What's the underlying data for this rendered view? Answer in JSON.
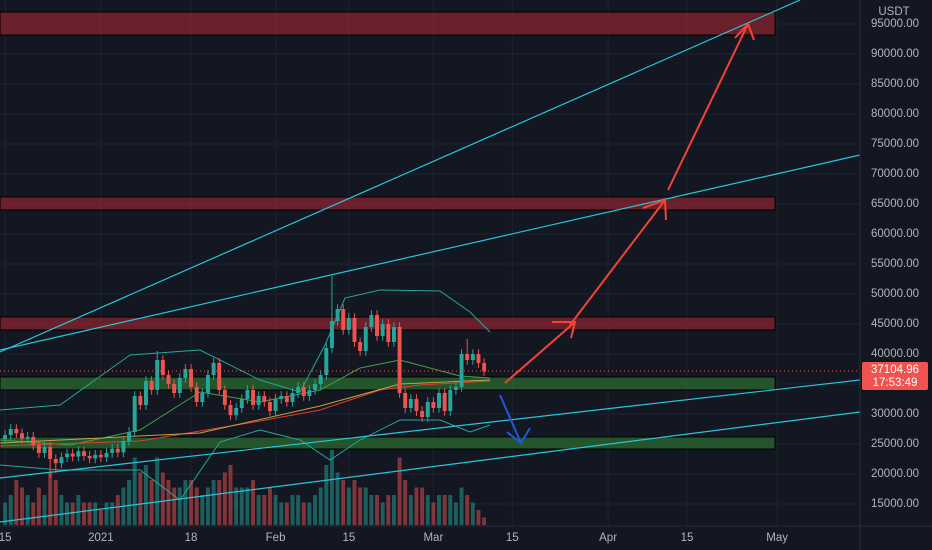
{
  "chart_data": {
    "type": "candlestick",
    "currency": "USDT",
    "countdown": "17:53:49",
    "grid": true,
    "up_color": "#26a69a",
    "down_color": "#ef5350",
    "xlim": [
      -0.9,
      151.7
    ],
    "xticks": [
      {
        "value": 0,
        "label": "15"
      },
      {
        "value": 17,
        "label": "2021"
      },
      {
        "value": 33,
        "label": "18"
      },
      {
        "value": 48,
        "label": "Feb"
      },
      {
        "value": 61,
        "label": "15"
      },
      {
        "value": 76,
        "label": "Mar"
      },
      {
        "value": 90,
        "label": "15"
      },
      {
        "value": 107,
        "label": "Apr"
      },
      {
        "value": 121,
        "label": "15"
      },
      {
        "value": 137,
        "label": "May"
      }
    ],
    "ylim": [
      11500,
      99000
    ],
    "yticks": [
      {
        "value": 15000,
        "label": "15000.00"
      },
      {
        "value": 20000,
        "label": "20000.00"
      },
      {
        "value": 25000,
        "label": "25000.00"
      },
      {
        "value": 30000,
        "label": "30000.00"
      },
      {
        "value": 35000,
        "label": "35000.00"
      },
      {
        "value": 40000,
        "label": "40000.00"
      },
      {
        "value": 45000,
        "label": "45000.00"
      },
      {
        "value": 50000,
        "label": "50000.00"
      },
      {
        "value": 55000,
        "label": "55000.00"
      },
      {
        "value": 60000,
        "label": "60000.00"
      },
      {
        "value": 65000,
        "label": "65000.00"
      },
      {
        "value": 70000,
        "label": "70000.00"
      },
      {
        "value": 75000,
        "label": "75000.00"
      },
      {
        "value": 80000,
        "label": "80000.00"
      },
      {
        "value": 85000,
        "label": "85000.00"
      },
      {
        "value": 90000,
        "label": "90000.00"
      },
      {
        "value": 95000,
        "label": "95000.00"
      }
    ],
    "open": [
      25800,
      26500,
      27500,
      26800,
      25900,
      26200,
      24800,
      23500,
      24500,
      22500,
      21800,
      22800,
      23400,
      22900,
      23800,
      23000,
      22600,
      23200,
      22800,
      23500,
      24200,
      23600,
      25500,
      27000,
      33000,
      31500,
      35500,
      34000,
      39000,
      36500,
      35000,
      33500,
      36000,
      37500,
      34500,
      32000,
      33500,
      36500,
      38500,
      34000,
      31500,
      29800,
      31000,
      32500,
      34000,
      31500,
      33000,
      32000,
      30500,
      32500,
      33000,
      32000,
      33500,
      34500,
      33000,
      34000,
      35000,
      36500,
      41000,
      45500,
      47500,
      44000,
      46000,
      42000,
      40500,
      44500,
      46500,
      43000,
      45000,
      42000,
      44500,
      33500,
      31000,
      32500,
      30500,
      29500,
      32000,
      31000,
      33500,
      30500,
      34000,
      34500,
      40000,
      39000,
      40000,
      38500
    ],
    "high": [
      27300,
      28300,
      28300,
      27600,
      27000,
      27000,
      25600,
      25300,
      25300,
      23300,
      23600,
      24200,
      24200,
      24600,
      24600,
      23800,
      24000,
      24000,
      24300,
      25000,
      25000,
      26300,
      27800,
      33800,
      33800,
      36300,
      36300,
      40500,
      39800,
      37300,
      35800,
      36800,
      38300,
      38300,
      35300,
      34300,
      37300,
      39300,
      39300,
      34800,
      32300,
      31800,
      33300,
      34800,
      34800,
      33800,
      33800,
      32800,
      33300,
      33800,
      33800,
      34300,
      35300,
      35300,
      34800,
      35800,
      37300,
      41800,
      53000,
      48300,
      48300,
      46800,
      46800,
      42800,
      45300,
      47300,
      47300,
      45800,
      45800,
      45300,
      45300,
      34300,
      33300,
      33300,
      31300,
      32800,
      32800,
      34300,
      34300,
      34800,
      35300,
      40800,
      42500,
      40800,
      40800,
      39300
    ],
    "low": [
      25000,
      25700,
      26000,
      25100,
      25100,
      24000,
      22700,
      22700,
      19500,
      20200,
      21000,
      22000,
      22100,
      22100,
      22200,
      21800,
      21800,
      22000,
      22000,
      22700,
      22800,
      22800,
      24700,
      26200,
      30700,
      30700,
      33200,
      33200,
      35700,
      34200,
      32700,
      32700,
      35200,
      33700,
      31200,
      31200,
      32700,
      35700,
      33200,
      30700,
      29000,
      29000,
      30200,
      31700,
      30700,
      30700,
      31200,
      29700,
      29700,
      31700,
      31200,
      31200,
      32700,
      32200,
      32200,
      33200,
      34200,
      35700,
      40200,
      44700,
      43200,
      43200,
      41200,
      39700,
      39700,
      43700,
      42200,
      42200,
      41200,
      41200,
      32700,
      30200,
      30200,
      29700,
      28700,
      28700,
      30200,
      30200,
      29700,
      29700,
      33200,
      33700,
      38200,
      38200,
      37700,
      36300
    ],
    "close": [
      26500,
      27500,
      26800,
      25900,
      26200,
      24800,
      23500,
      24500,
      22500,
      21800,
      22800,
      23400,
      22900,
      23800,
      23000,
      22600,
      23200,
      22800,
      23500,
      24200,
      23600,
      25500,
      27000,
      33000,
      31500,
      35500,
      34000,
      39000,
      36500,
      35000,
      33500,
      36000,
      37500,
      34500,
      32000,
      33500,
      36500,
      38500,
      34000,
      31500,
      29800,
      31000,
      32500,
      34000,
      31500,
      33000,
      32000,
      30500,
      32500,
      33000,
      32000,
      33500,
      34500,
      33000,
      34000,
      35000,
      36500,
      41000,
      45500,
      47500,
      44000,
      46000,
      42000,
      40500,
      44500,
      46500,
      43000,
      45000,
      42000,
      44500,
      33500,
      31000,
      32500,
      30500,
      29500,
      32000,
      31000,
      33500,
      30500,
      34000,
      34500,
      40000,
      39000,
      40000,
      38500,
      37104.96
    ],
    "volume": [
      3,
      4,
      6,
      5,
      4,
      3,
      5,
      4,
      7,
      6,
      4,
      3,
      3,
      4,
      3,
      3,
      3,
      2,
      3,
      3,
      4,
      5,
      6,
      9,
      7,
      8,
      6,
      9,
      7,
      6,
      5,
      5,
      6,
      6,
      5,
      4,
      5,
      6,
      6,
      7,
      8,
      5,
      5,
      5,
      6,
      4,
      4,
      5,
      4,
      3,
      3,
      4,
      4,
      3,
      3,
      4,
      5,
      8,
      10,
      7,
      6,
      5,
      6,
      5,
      5,
      4,
      4,
      3,
      4,
      4,
      9,
      6,
      4,
      5,
      5,
      4,
      3,
      4,
      4,
      4,
      3,
      5,
      4,
      3,
      2,
      1
    ]
  }
}
